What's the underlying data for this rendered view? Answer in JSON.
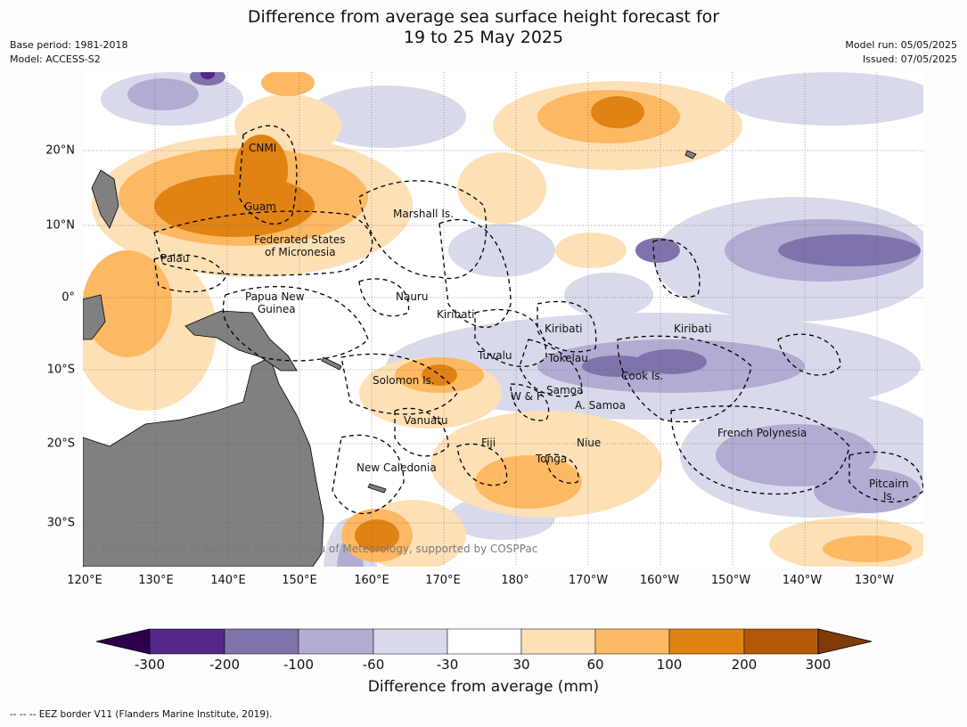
{
  "header": {
    "title_line1": "Difference from average sea surface height forecast for",
    "title_line2": "19 to 25 May 2025",
    "base_period": "Base period: 1981-2018",
    "model": "Model: ACCESS-S2",
    "model_run": "Model run: 05/05/2025",
    "issued": "Issued: 07/05/2025"
  },
  "map": {
    "copyright": "© Commonwealth of Australia 2025, Bureau of Meteorology, supported by COSPPac",
    "lon_ticks": [
      "120°E",
      "130°E",
      "140°E",
      "150°E",
      "160°E",
      "170°E",
      "180°",
      "170°W",
      "160°W",
      "150°W",
      "140°W",
      "130°W"
    ],
    "lat_ticks": [
      "20°N",
      "10°N",
      "0°",
      "10°S",
      "20°S",
      "30°S"
    ],
    "land_color": "#808080",
    "regions": [
      {
        "label": "CNMI"
      },
      {
        "label": "Guam"
      },
      {
        "label": "Marshall Is."
      },
      {
        "label": "Federated States"
      },
      {
        "label": "of Micronesia"
      },
      {
        "label": "Palau"
      },
      {
        "label": "Papua New"
      },
      {
        "label": "Guinea"
      },
      {
        "label": "Nauru"
      },
      {
        "label": "Kiribati"
      },
      {
        "label": "Kiribati"
      },
      {
        "label": "Kiribati"
      },
      {
        "label": "Tuvalu"
      },
      {
        "label": "Tokelau"
      },
      {
        "label": "Solomon Is."
      },
      {
        "label": "Cook Is."
      },
      {
        "label": "Samoa"
      },
      {
        "label": "W & F"
      },
      {
        "label": "A. Samoa"
      },
      {
        "label": "Vanuatu"
      },
      {
        "label": "Fiji"
      },
      {
        "label": "Niue"
      },
      {
        "label": "French Polynesia"
      },
      {
        "label": "Tonga"
      },
      {
        "label": "New Caledonia"
      },
      {
        "label": "Pitcairn"
      },
      {
        "label": "Is."
      }
    ]
  },
  "colorbar": {
    "label": "Difference from average (mm)",
    "ticks": [
      "-300",
      "-200",
      "-100",
      "-60",
      "-30",
      "30",
      "60",
      "100",
      "200",
      "300"
    ],
    "colors": [
      "#2d004b",
      "#542788",
      "#8073ac",
      "#b2abd2",
      "#d8daeb",
      "#ffffff",
      "#fee0b6",
      "#fdb863",
      "#e08214",
      "#b35806",
      "#7f3b08"
    ]
  },
  "footer": {
    "legend": "-- -- -- EEZ border V11 (Flanders Marine Institute, 2019)."
  }
}
